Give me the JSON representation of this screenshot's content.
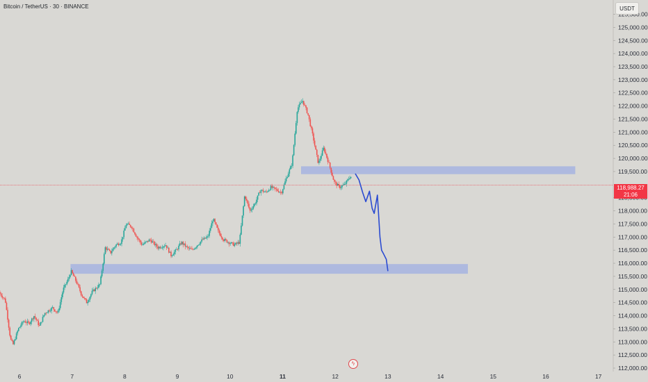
{
  "header": {
    "title": "Bitcoin / TetherUS · 30 · BINANCE",
    "currency": "USDT"
  },
  "last_price": {
    "value": "118,988.27",
    "countdown": "21:06"
  },
  "colors": {
    "up": "#26a69a",
    "down": "#ef5350",
    "zone": "#a9b6e0",
    "projection": "#2b4bd1",
    "price_line": "#f23645"
  },
  "icons": {
    "event": "flash-icon"
  },
  "chart_data": {
    "type": "candlestick",
    "title": "Bitcoin / TetherUS · 30 · BINANCE",
    "ylim": [
      112000,
      125800
    ],
    "y_ticks": [
      {
        "value": 125500,
        "label": "125,500.00"
      },
      {
        "value": 125000,
        "label": "125,000.00"
      },
      {
        "value": 124500,
        "label": "124,500.00"
      },
      {
        "value": 124000,
        "label": "124,000.00"
      },
      {
        "value": 123500,
        "label": "123,500.00"
      },
      {
        "value": 123000,
        "label": "123,000.00"
      },
      {
        "value": 122500,
        "label": "122,500.00"
      },
      {
        "value": 122000,
        "label": "122,000.00"
      },
      {
        "value": 121500,
        "label": "121,500.00"
      },
      {
        "value": 121000,
        "label": "121,000.00"
      },
      {
        "value": 120500,
        "label": "120,500.00"
      },
      {
        "value": 120000,
        "label": "120,000.00"
      },
      {
        "value": 119500,
        "label": "119,500.00"
      },
      {
        "value": 118500,
        "label": "118,500.00"
      },
      {
        "value": 118000,
        "label": "118,000.00"
      },
      {
        "value": 117500,
        "label": "117,500.00"
      },
      {
        "value": 117000,
        "label": "117,000.00"
      },
      {
        "value": 116500,
        "label": "116,500.00"
      },
      {
        "value": 116000,
        "label": "116,000.00"
      },
      {
        "value": 115500,
        "label": "115,500.00"
      },
      {
        "value": 115000,
        "label": "115,000.00"
      },
      {
        "value": 114500,
        "label": "114,500.00"
      },
      {
        "value": 114000,
        "label": "114,000.00"
      },
      {
        "value": 113500,
        "label": "113,500.00"
      },
      {
        "value": 113000,
        "label": "113,000.00"
      },
      {
        "value": 112500,
        "label": "112,500.00"
      },
      {
        "value": 112000,
        "label": "112,000.00"
      }
    ],
    "x_ticks": [
      {
        "value": 6,
        "label": "6",
        "bold": false
      },
      {
        "value": 7,
        "label": "7",
        "bold": false
      },
      {
        "value": 8,
        "label": "8",
        "bold": false
      },
      {
        "value": 9,
        "label": "9",
        "bold": false
      },
      {
        "value": 10,
        "label": "10",
        "bold": false
      },
      {
        "value": 11,
        "label": "11",
        "bold": true
      },
      {
        "value": 12,
        "label": "12",
        "bold": false
      },
      {
        "value": 13,
        "label": "13",
        "bold": false
      },
      {
        "value": 14,
        "label": "14",
        "bold": false
      },
      {
        "value": 15,
        "label": "15",
        "bold": false
      },
      {
        "value": 16,
        "label": "16",
        "bold": false
      },
      {
        "value": 17,
        "label": "17",
        "bold": false
      }
    ],
    "price_path": [
      [
        5.63,
        114900
      ],
      [
        5.75,
        114600
      ],
      [
        5.85,
        113100
      ],
      [
        5.9,
        112900
      ],
      [
        6.0,
        113500
      ],
      [
        6.1,
        113800
      ],
      [
        6.2,
        113700
      ],
      [
        6.3,
        114000
      ],
      [
        6.4,
        113600
      ],
      [
        6.5,
        114100
      ],
      [
        6.65,
        114300
      ],
      [
        6.75,
        114100
      ],
      [
        6.85,
        115000
      ],
      [
        6.95,
        115400
      ],
      [
        7.0,
        115700
      ],
      [
        7.1,
        115300
      ],
      [
        7.2,
        114800
      ],
      [
        7.3,
        114500
      ],
      [
        7.4,
        114900
      ],
      [
        7.55,
        115200
      ],
      [
        7.65,
        116600
      ],
      [
        7.75,
        116400
      ],
      [
        7.85,
        116700
      ],
      [
        7.95,
        116800
      ],
      [
        8.05,
        117500
      ],
      [
        8.15,
        117400
      ],
      [
        8.25,
        117000
      ],
      [
        8.35,
        116700
      ],
      [
        8.5,
        116900
      ],
      [
        8.65,
        116600
      ],
      [
        8.8,
        116700
      ],
      [
        8.9,
        116300
      ],
      [
        9.0,
        116500
      ],
      [
        9.1,
        116800
      ],
      [
        9.2,
        116600
      ],
      [
        9.3,
        116500
      ],
      [
        9.4,
        116700
      ],
      [
        9.5,
        116900
      ],
      [
        9.6,
        117000
      ],
      [
        9.7,
        117700
      ],
      [
        9.8,
        117200
      ],
      [
        9.9,
        116900
      ],
      [
        10.0,
        116800
      ],
      [
        10.1,
        116700
      ],
      [
        10.2,
        116800
      ],
      [
        10.3,
        118600
      ],
      [
        10.4,
        118000
      ],
      [
        10.5,
        118300
      ],
      [
        10.6,
        118800
      ],
      [
        10.7,
        118700
      ],
      [
        10.8,
        118900
      ],
      [
        10.9,
        118800
      ],
      [
        11.0,
        118700
      ],
      [
        11.1,
        119300
      ],
      [
        11.2,
        119800
      ],
      [
        11.3,
        121900
      ],
      [
        11.4,
        122200
      ],
      [
        11.5,
        121700
      ],
      [
        11.6,
        120800
      ],
      [
        11.7,
        119800
      ],
      [
        11.8,
        120400
      ],
      [
        11.9,
        119800
      ],
      [
        12.0,
        119100
      ],
      [
        12.1,
        118900
      ],
      [
        12.2,
        119000
      ],
      [
        12.3,
        119300
      ]
    ],
    "zones": [
      {
        "x1": 11.35,
        "x2": 16.56,
        "y1": 119400,
        "y2": 119700
      },
      {
        "x1": 6.97,
        "x2": 14.52,
        "y1": 115600,
        "y2": 115970
      }
    ],
    "projection": [
      [
        12.38,
        119420
      ],
      [
        12.45,
        119180
      ],
      [
        12.52,
        118700
      ],
      [
        12.58,
        118350
      ],
      [
        12.65,
        118750
      ],
      [
        12.7,
        118100
      ],
      [
        12.74,
        117900
      ],
      [
        12.8,
        118600
      ],
      [
        12.85,
        117000
      ],
      [
        12.88,
        116500
      ],
      [
        12.92,
        116350
      ],
      [
        12.97,
        116150
      ],
      [
        13.0,
        115700
      ]
    ],
    "last_price_value": 118988.27
  }
}
